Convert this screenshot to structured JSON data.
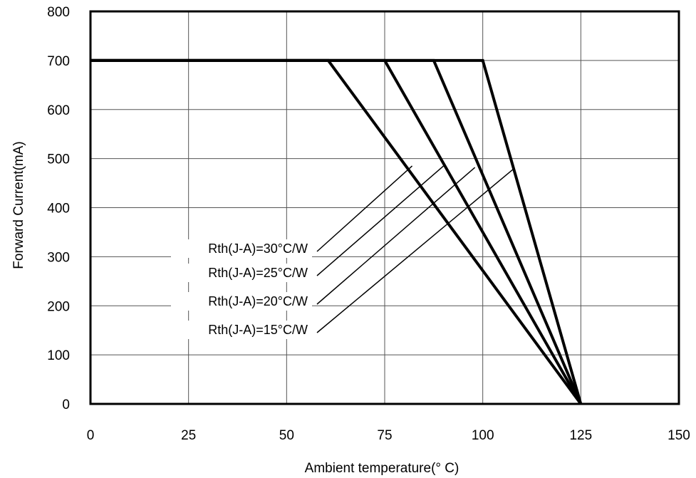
{
  "chart_data": {
    "type": "line",
    "title": "",
    "xlabel": "Ambient temperature(° C)",
    "ylabel": "Forward Current(mA)",
    "xlim": [
      0,
      150
    ],
    "ylim": [
      0,
      800
    ],
    "xticks": [
      "0",
      "25",
      "50",
      "75",
      "100",
      "125",
      "150"
    ],
    "yticks": [
      "0",
      "100",
      "200",
      "300",
      "400",
      "500",
      "600",
      "700",
      "800"
    ],
    "grid": true,
    "legend": "none",
    "series": [
      {
        "name": "Rth(J-A)=30°C/W",
        "x": [
          0,
          60.6,
          125
        ],
        "y": [
          700,
          700,
          0
        ],
        "label_at": [
          82,
          485
        ]
      },
      {
        "name": "Rth(J-A)=25°C/W",
        "x": [
          0,
          75.0,
          125
        ],
        "y": [
          700,
          700,
          0
        ],
        "label_at": [
          90,
          485
        ]
      },
      {
        "name": "Rth(J-A)=20°C/W",
        "x": [
          0,
          87.5,
          125
        ],
        "y": [
          700,
          700,
          0
        ],
        "label_at": [
          98,
          482
        ]
      },
      {
        "name": "Rth(J-A)=15°C/W",
        "x": [
          0,
          100.0,
          125
        ],
        "y": [
          700,
          700,
          0
        ],
        "label_at": [
          108,
          480
        ]
      }
    ],
    "line_color": "#000000"
  }
}
